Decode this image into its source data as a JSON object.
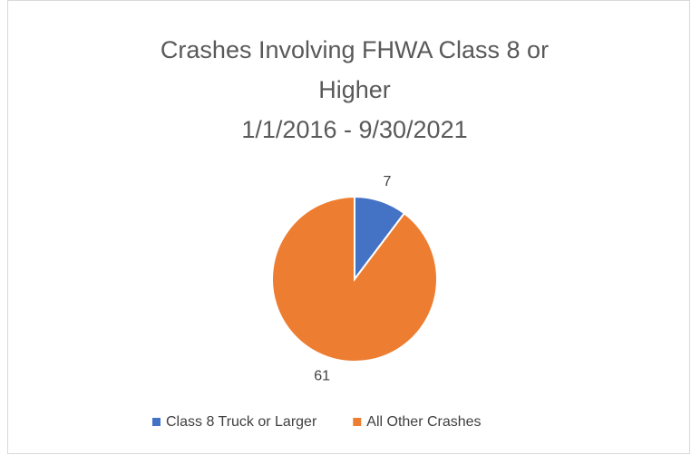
{
  "chart_data": {
    "type": "pie",
    "title": "Crashes Involving FHWA Class 8 or Higher",
    "subtitle": "1/1/2016 - 9/30/2021",
    "categories": [
      "Class 8 Truck or Larger",
      "All Other Crashes"
    ],
    "values": [
      7,
      61
    ],
    "colors": [
      "#4472c4",
      "#ed7d31"
    ],
    "legend": "bottom"
  }
}
